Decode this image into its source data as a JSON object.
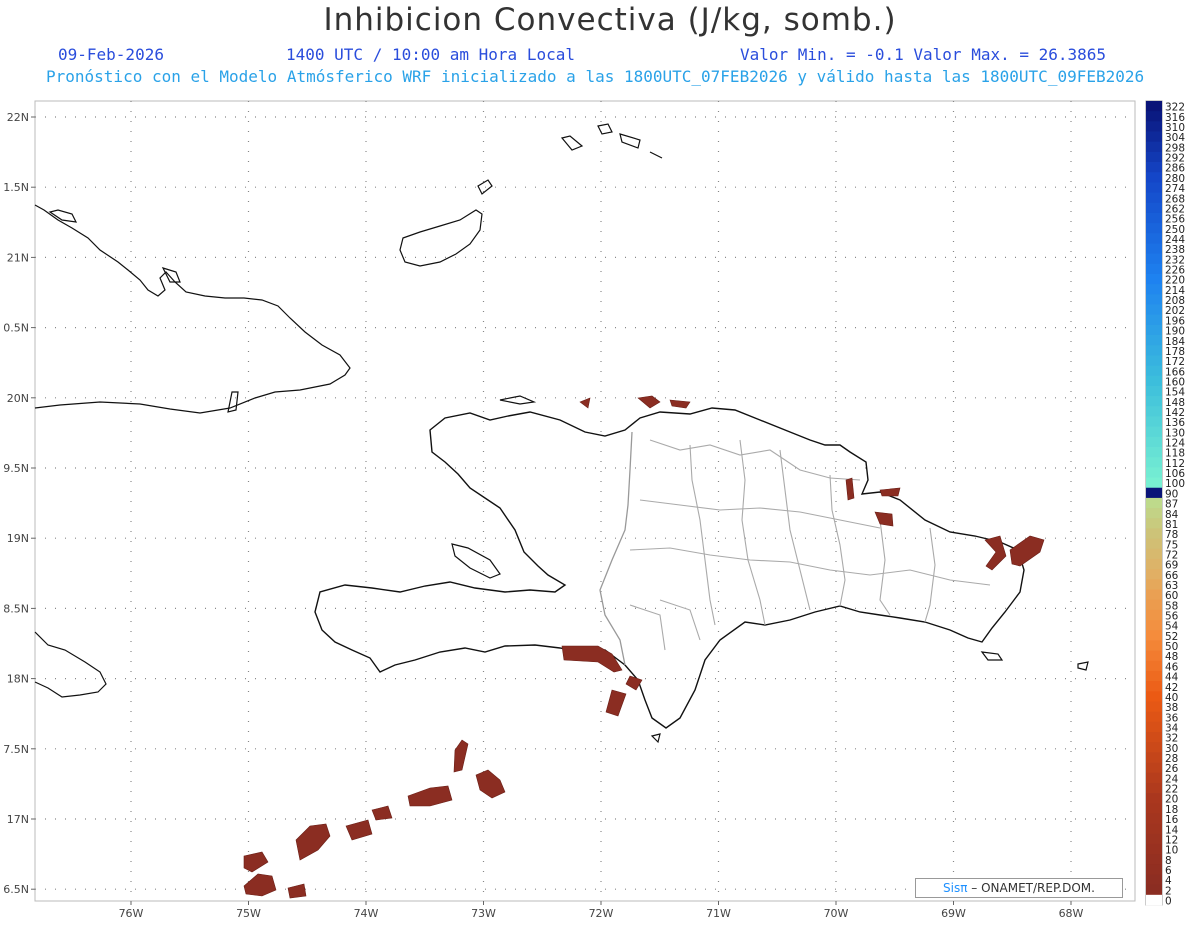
{
  "title": "Inhibicion Convectiva (J/kg, somb.)",
  "header": {
    "date": "09-Feb-2026",
    "time": "1400 UTC / 10:00 am Hora Local",
    "minmax": "Valor Min. = -0.1  Valor Max. = 26.3865",
    "subtitle": "Pronóstico con el Modelo Atmósferico WRF inicializado a las 1800UTC_07FEB2026 y válido hasta las  1800UTC_09FEB2026"
  },
  "lat_labels": [
    "22N",
    "1.5N",
    "21N",
    "0.5N",
    "20N",
    "9.5N",
    "19N",
    "8.5N",
    "18N",
    "7.5N",
    "17N",
    "6.5N"
  ],
  "lon_labels": [
    "76W",
    "75W",
    "74W",
    "73W",
    "72W",
    "71W",
    "70W",
    "69W",
    "68W"
  ],
  "colorbar": {
    "labels": [
      "322",
      "316",
      "310",
      "304",
      "298",
      "292",
      "286",
      "280",
      "274",
      "268",
      "262",
      "256",
      "250",
      "244",
      "238",
      "232",
      "226",
      "220",
      "214",
      "208",
      "202",
      "196",
      "190",
      "184",
      "178",
      "172",
      "166",
      "160",
      "154",
      "148",
      "142",
      "136",
      "130",
      "124",
      "118",
      "112",
      "106",
      "100",
      "90",
      "87",
      "84",
      "81",
      "78",
      "75",
      "72",
      "69",
      "66",
      "63",
      "60",
      "58",
      "56",
      "54",
      "52",
      "50",
      "48",
      "46",
      "44",
      "42",
      "40",
      "38",
      "36",
      "34",
      "32",
      "30",
      "28",
      "26",
      "24",
      "22",
      "20",
      "18",
      "16",
      "14",
      "12",
      "10",
      "8",
      "6",
      "4",
      "2",
      "0"
    ]
  },
  "credit": {
    "brand": "Sisπ",
    "text": "– ONAMET/REP.DOM."
  },
  "colors": {
    "shade": "#8b2d22",
    "border": "#000000",
    "province": "#aaaaaa",
    "grid": "#888888"
  }
}
